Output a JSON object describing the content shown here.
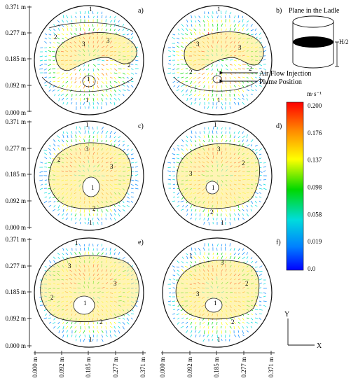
{
  "y_axis": {
    "groups": [
      [
        "0.371 m",
        "0.277 m",
        "0.185 m",
        "0.092 m",
        "0.000 m"
      ],
      [
        "0.371 m",
        "0.277 m",
        "0.185 m",
        "0.092 m",
        "0.000 m"
      ],
      [
        "0.371 m",
        "0.277 m",
        "0.185 m",
        "0.092 m",
        "0.000 m"
      ]
    ]
  },
  "x_axis": {
    "groups": [
      [
        "0.000 m",
        "0.092 m",
        "0.185 m",
        "0.277 m",
        "0.371 m"
      ],
      [
        "0.000 m",
        "0.092 m",
        "0.185 m",
        "0.277 m",
        "0.371 m"
      ]
    ]
  },
  "panels": [
    {
      "id": "a",
      "label": "a)"
    },
    {
      "id": "b",
      "label": "b)"
    },
    {
      "id": "c",
      "label": "c)"
    },
    {
      "id": "d",
      "label": "d)"
    },
    {
      "id": "e",
      "label": "e)"
    },
    {
      "id": "f",
      "label": "f)"
    }
  ],
  "zone_labels": {
    "one": "1",
    "two": "2",
    "three": "3"
  },
  "schematic": {
    "title": "Plane in the Ladle",
    "height_label": "H/2"
  },
  "annotations": {
    "air_flow": "Air Flow Injection",
    "plume": "Plume Position"
  },
  "colorbar": {
    "unit": "m·s⁻¹",
    "ticks": [
      "0.200",
      "0.176",
      "0.137",
      "0.098",
      "0.058",
      "0.019",
      "0.0"
    ],
    "colors": [
      "#ff0000",
      "#ff8800",
      "#ffff00",
      "#00dd00",
      "#00dddd",
      "#0088ff",
      "#0000ff"
    ]
  },
  "axes_indicator": {
    "y": "Y",
    "x": "X"
  }
}
